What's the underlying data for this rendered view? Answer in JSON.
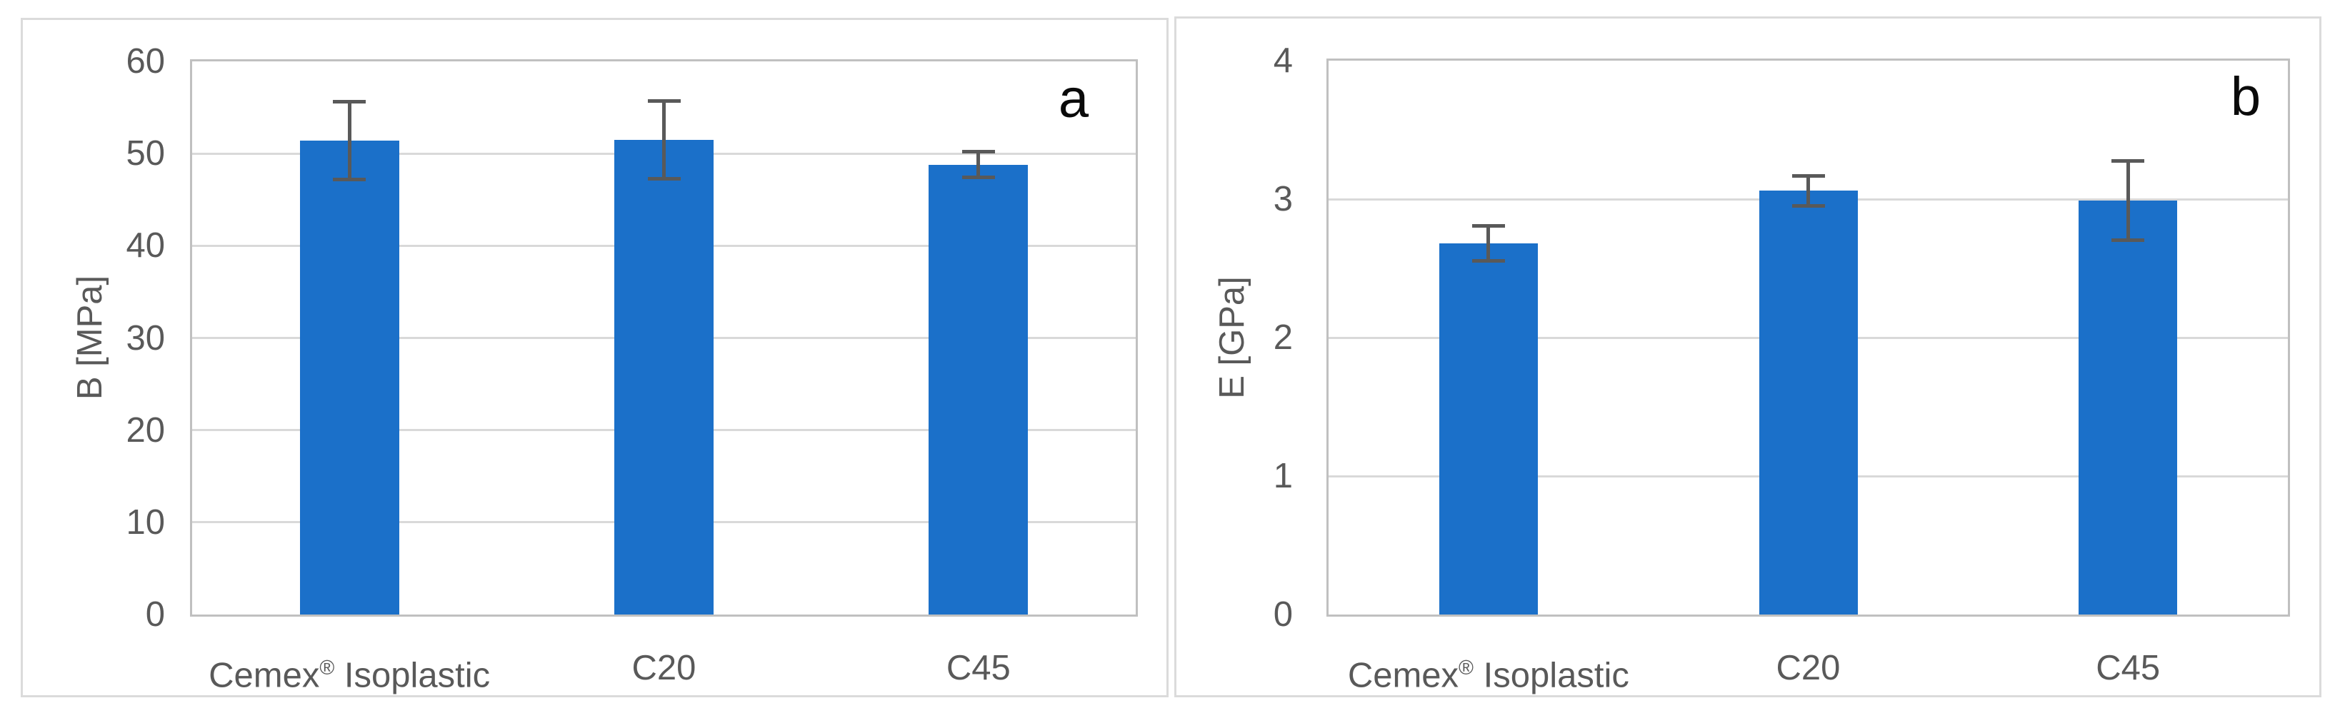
{
  "page": {
    "background": "#ffffff"
  },
  "colors": {
    "bar": "#1b70c9",
    "error_bar": "#595959",
    "axis_text": "#595959",
    "gridline": "#d9d9d9",
    "plot_border": "#c0c0c0",
    "panel_border": "#dbdbdb",
    "panel_letter": "#0a0a0a"
  },
  "chart_data": [
    {
      "type": "bar",
      "panel_label": "a",
      "title": "",
      "xlabel": "",
      "ylabel": "B [MPa]",
      "categories": [
        "Cemex® Isoplastic",
        "C20",
        "C45"
      ],
      "values": [
        51.4,
        51.5,
        48.8
      ],
      "error_bars": [
        4.4,
        4.4,
        1.6
      ],
      "ylim": [
        0,
        60
      ],
      "yticks": [
        0,
        10,
        20,
        30,
        40,
        50,
        60
      ],
      "grid": "horizontal",
      "legend": "none"
    },
    {
      "type": "bar",
      "panel_label": "b",
      "title": "",
      "xlabel": "",
      "ylabel": "E [GPa]",
      "categories": [
        "Cemex® Isoplastic",
        "C20",
        "C45"
      ],
      "values": [
        2.68,
        3.06,
        2.99
      ],
      "error_bars": [
        0.14,
        0.12,
        0.3
      ],
      "ylim": [
        0,
        4
      ],
      "yticks": [
        0,
        1,
        2,
        3,
        4
      ],
      "grid": "horizontal",
      "legend": "none"
    }
  ]
}
